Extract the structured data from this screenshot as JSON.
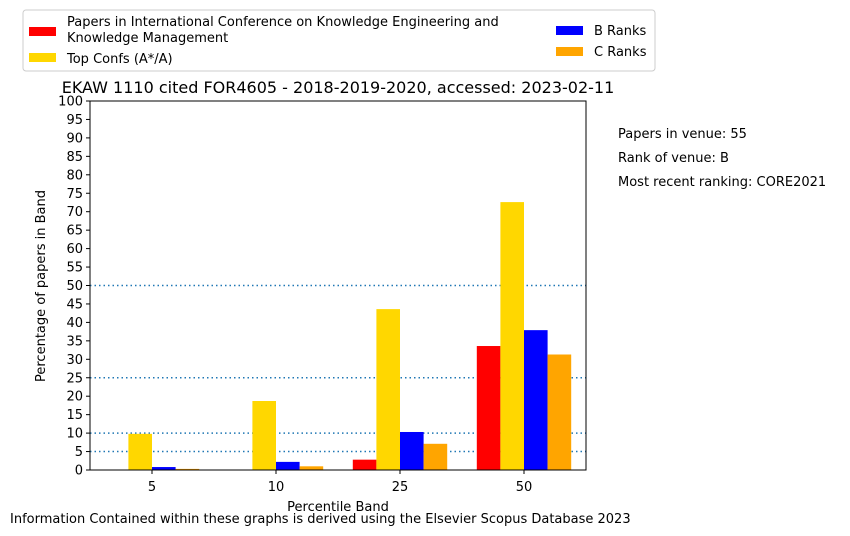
{
  "chart_data": {
    "type": "bar",
    "title": "EKAW 1110 cited FOR4605 - 2018-2019-2020, accessed: 2023-02-11",
    "xlabel": "Percentile Band",
    "ylabel": "Percentage of papers in Band",
    "categories": [
      "5",
      "10",
      "25",
      "50"
    ],
    "ylim": [
      0,
      100
    ],
    "yticks": [
      0,
      5,
      10,
      15,
      20,
      25,
      30,
      35,
      40,
      45,
      50,
      55,
      60,
      65,
      70,
      75,
      80,
      85,
      90,
      95,
      100
    ],
    "reference_lines": [
      5,
      10,
      25,
      50
    ],
    "legend_position": "top",
    "series": [
      {
        "name": "Papers in International Conference on Knowledge Engineering and Knowledge Management",
        "color": "#ff0000",
        "values": [
          0,
          0,
          2.8,
          33.6
        ]
      },
      {
        "name": "Top Confs (A*/A)",
        "color": "#ffd700",
        "values": [
          9.8,
          18.7,
          43.6,
          72.6
        ]
      },
      {
        "name": "B Ranks",
        "color": "#0000ff",
        "values": [
          0.8,
          2.2,
          10.3,
          37.9
        ]
      },
      {
        "name": "C Ranks",
        "color": "#ffa500",
        "values": [
          0.3,
          1.0,
          7.1,
          31.3
        ]
      }
    ]
  },
  "venue_info": {
    "papers": "Papers in venue: 55",
    "rank": "Rank of venue: B",
    "recent": "Most recent ranking: CORE2021"
  },
  "footer": "Information Contained within these graphs is derived using the Elsevier Scopus Database 2023"
}
